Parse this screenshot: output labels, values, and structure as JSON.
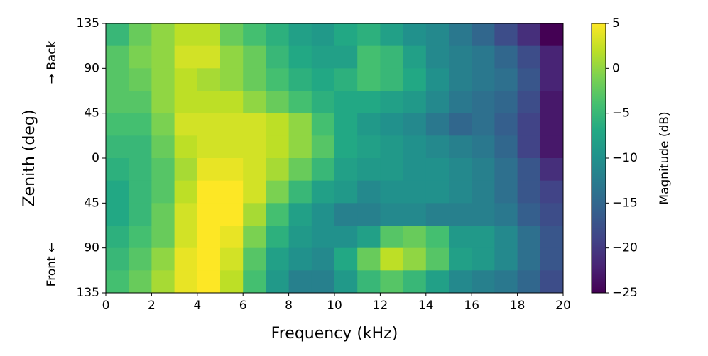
{
  "chart_data": {
    "type": "heatmap",
    "xlabel": "Frequency (kHz)",
    "ylabel": "Zenith (deg)",
    "annotations": [
      "→ Back",
      "Front ←"
    ],
    "colorbar_label": "Magnitude (dB)",
    "colormap": [
      "#440154",
      "#482475",
      "#414487",
      "#355f8d",
      "#2a788e",
      "#21918c",
      "#22a884",
      "#44bf70",
      "#7ad151",
      "#bddf26",
      "#fde725"
    ],
    "xlim": [
      0,
      20
    ],
    "xticks": [
      0,
      2,
      4,
      6,
      8,
      10,
      12,
      14,
      16,
      18,
      20
    ],
    "ylim": [
      -135,
      135
    ],
    "yticks": [
      {
        "value": -135,
        "label": "135"
      },
      {
        "value": -90,
        "label": "90"
      },
      {
        "value": -45,
        "label": "45"
      },
      0,
      45,
      90,
      135
    ],
    "clim": [
      -25,
      5
    ],
    "cticks": [
      {
        "value": -25,
        "label": "−25"
      },
      {
        "value": -20,
        "label": "−20"
      },
      {
        "value": -15,
        "label": "−15"
      },
      {
        "value": -10,
        "label": "−10"
      },
      {
        "value": -5,
        "label": "−5"
      },
      0,
      5
    ],
    "x": [
      0.5,
      1.5,
      2.5,
      3.5,
      4.5,
      5.5,
      6.5,
      7.5,
      8.5,
      9.5,
      10.5,
      11.5,
      12.5,
      13.5,
      14.5,
      15.5,
      16.5,
      17.5,
      18.5,
      19.5
    ],
    "y": [
      123.75,
      101.25,
      78.75,
      56.25,
      33.75,
      11.25,
      -11.25,
      -33.75,
      -56.25,
      -78.75,
      -101.25,
      -123.75
    ],
    "values": [
      [
        -5,
        -2,
        0,
        2,
        2,
        -2,
        -4,
        -6,
        -8,
        -9,
        -7,
        -6,
        -8,
        -10,
        -11,
        -13,
        -15,
        -18,
        -21,
        -25
      ],
      [
        -3,
        -1,
        0,
        3,
        3,
        0,
        -2,
        -5,
        -7,
        -8,
        -8,
        -4,
        -5,
        -8,
        -11,
        -12,
        -13,
        -15,
        -18,
        -22
      ],
      [
        -3,
        -2,
        0,
        2,
        1,
        0,
        -2,
        -4,
        -6,
        -7,
        -6,
        -4,
        -5,
        -7,
        -10,
        -12,
        -13,
        -14,
        -17,
        -22
      ],
      [
        -3,
        -3,
        0,
        2,
        2,
        2,
        0,
        -2,
        -4,
        -6,
        -7,
        -7,
        -8,
        -9,
        -11,
        -13,
        -14,
        -15,
        -18,
        -23
      ],
      [
        -4,
        -4,
        -1,
        3,
        3,
        3,
        3,
        2,
        0,
        -4,
        -7,
        -9,
        -10,
        -11,
        -13,
        -15,
        -14,
        -16,
        -19,
        -23
      ],
      [
        -5,
        -5,
        -2,
        2,
        3,
        3,
        3,
        2,
        0,
        -3,
        -7,
        -8,
        -9,
        -10,
        -11,
        -12,
        -13,
        -15,
        -19,
        -23
      ],
      [
        -6,
        -5,
        -3,
        1,
        4,
        4,
        3,
        1,
        -2,
        -5,
        -8,
        -9,
        -9,
        -10,
        -10,
        -11,
        -12,
        -14,
        -17,
        -21
      ],
      [
        -7,
        -5,
        -3,
        2,
        5,
        5,
        3,
        -1,
        -5,
        -8,
        -9,
        -11,
        -10,
        -10,
        -10,
        -11,
        -12,
        -14,
        -17,
        -19
      ],
      [
        -7,
        -5,
        -2,
        3,
        5,
        5,
        1,
        -4,
        -8,
        -10,
        -12,
        -12,
        -11,
        -11,
        -12,
        -12,
        -12,
        -13,
        -16,
        -18
      ],
      [
        -6,
        -4,
        -2,
        3,
        5,
        4,
        -1,
        -6,
        -9,
        -10,
        -10,
        -8,
        -3,
        -2,
        -4,
        -9,
        -9,
        -11,
        -14,
        -17
      ],
      [
        -5,
        -3,
        0,
        4,
        5,
        3,
        -3,
        -8,
        -10,
        -11,
        -7,
        -2,
        2,
        0,
        -3,
        -8,
        -9,
        -11,
        -14,
        -17
      ],
      [
        -4,
        -2,
        1,
        4,
        5,
        2,
        -4,
        -9,
        -12,
        -12,
        -9,
        -5,
        -3,
        -5,
        -8,
        -11,
        -12,
        -13,
        -15,
        -18
      ]
    ]
  }
}
